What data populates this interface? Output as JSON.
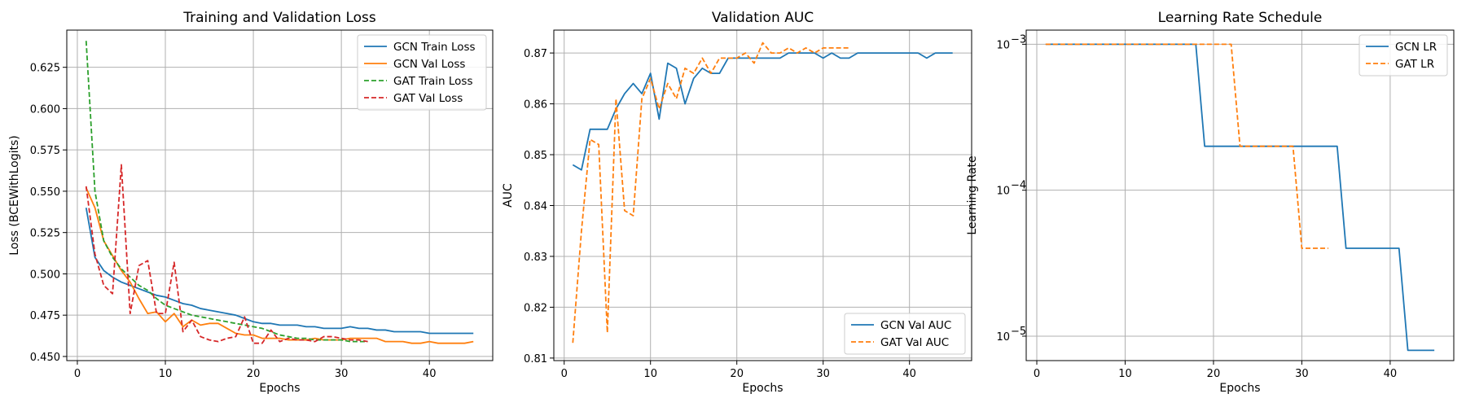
{
  "chart_data": [
    {
      "type": "line",
      "title": "Training and Validation Loss",
      "xlabel": "Epochs",
      "ylabel": "Loss (BCEWithLogits)",
      "xlim": [
        -1.2,
        47.2
      ],
      "ylim": [
        0.4475,
        0.6475
      ],
      "xticks": [
        0,
        10,
        20,
        30,
        40
      ],
      "yticks": [
        0.45,
        0.475,
        0.5,
        0.525,
        0.55,
        0.575,
        0.6,
        0.625
      ],
      "ytick_labels": [
        "0.450",
        "0.475",
        "0.500",
        "0.525",
        "0.550",
        "0.575",
        "0.600",
        "0.625"
      ],
      "grid": true,
      "legend_position": "top-right",
      "series": [
        {
          "name": "GCN Train Loss",
          "color": "#1f77b4",
          "dashed": false,
          "x": [
            1,
            2,
            3,
            4,
            5,
            6,
            7,
            8,
            9,
            10,
            11,
            12,
            13,
            14,
            15,
            16,
            17,
            18,
            19,
            20,
            21,
            22,
            23,
            24,
            25,
            26,
            27,
            28,
            29,
            30,
            31,
            32,
            33,
            34,
            35,
            36,
            37,
            38,
            39,
            40,
            41,
            42,
            43,
            44,
            45
          ],
          "y": [
            0.54,
            0.51,
            0.502,
            0.498,
            0.495,
            0.493,
            0.491,
            0.489,
            0.487,
            0.486,
            0.484,
            0.482,
            0.481,
            0.479,
            0.478,
            0.477,
            0.476,
            0.475,
            0.473,
            0.471,
            0.47,
            0.47,
            0.469,
            0.469,
            0.469,
            0.468,
            0.468,
            0.467,
            0.467,
            0.467,
            0.468,
            0.467,
            0.467,
            0.466,
            0.466,
            0.465,
            0.465,
            0.465,
            0.465,
            0.464,
            0.464,
            0.464,
            0.464,
            0.464,
            0.464
          ]
        },
        {
          "name": "GCN Val Loss",
          "color": "#ff7f0e",
          "dashed": false,
          "x": [
            1,
            2,
            3,
            4,
            5,
            6,
            7,
            8,
            9,
            10,
            11,
            12,
            13,
            14,
            15,
            16,
            17,
            18,
            19,
            20,
            21,
            22,
            23,
            24,
            25,
            26,
            27,
            28,
            29,
            30,
            31,
            32,
            33,
            34,
            35,
            36,
            37,
            38,
            39,
            40,
            41,
            42,
            43,
            44,
            45
          ],
          "y": [
            0.552,
            0.54,
            0.52,
            0.511,
            0.502,
            0.495,
            0.485,
            0.476,
            0.477,
            0.471,
            0.476,
            0.468,
            0.472,
            0.469,
            0.47,
            0.47,
            0.467,
            0.464,
            0.463,
            0.463,
            0.461,
            0.461,
            0.461,
            0.46,
            0.46,
            0.46,
            0.461,
            0.46,
            0.46,
            0.46,
            0.461,
            0.461,
            0.461,
            0.461,
            0.459,
            0.459,
            0.459,
            0.458,
            0.458,
            0.459,
            0.458,
            0.458,
            0.458,
            0.458,
            0.459
          ]
        },
        {
          "name": "GAT Train Loss",
          "color": "#2ca02c",
          "dashed": true,
          "x": [
            1,
            2,
            3,
            4,
            5,
            6,
            7,
            8,
            9,
            10,
            11,
            12,
            13,
            14,
            15,
            16,
            17,
            18,
            19,
            20,
            21,
            22,
            23,
            24,
            25,
            26,
            27,
            28,
            29,
            30,
            31,
            32,
            33
          ],
          "y": [
            0.641,
            0.55,
            0.52,
            0.51,
            0.503,
            0.498,
            0.493,
            0.49,
            0.485,
            0.481,
            0.479,
            0.477,
            0.475,
            0.474,
            0.473,
            0.472,
            0.471,
            0.47,
            0.469,
            0.468,
            0.467,
            0.465,
            0.463,
            0.462,
            0.461,
            0.461,
            0.46,
            0.46,
            0.46,
            0.46,
            0.459,
            0.459,
            0.459
          ]
        },
        {
          "name": "GAT Val Loss",
          "color": "#d62728",
          "dashed": true,
          "x": [
            1,
            2,
            3,
            4,
            5,
            6,
            7,
            8,
            9,
            10,
            11,
            12,
            13,
            14,
            15,
            16,
            17,
            18,
            19,
            20,
            21,
            22,
            23,
            24,
            25,
            26,
            27,
            28,
            29,
            30,
            31,
            32,
            33
          ],
          "y": [
            0.553,
            0.512,
            0.493,
            0.488,
            0.566,
            0.476,
            0.505,
            0.508,
            0.476,
            0.476,
            0.507,
            0.465,
            0.472,
            0.462,
            0.46,
            0.459,
            0.461,
            0.462,
            0.474,
            0.458,
            0.458,
            0.466,
            0.459,
            0.461,
            0.46,
            0.46,
            0.459,
            0.462,
            0.462,
            0.461,
            0.46,
            0.46,
            0.459
          ]
        }
      ]
    },
    {
      "type": "line",
      "title": "Validation AUC",
      "xlabel": "Epochs",
      "ylabel": "AUC",
      "xlim": [
        -1.2,
        47.2
      ],
      "ylim": [
        0.8095,
        0.8745
      ],
      "xticks": [
        0,
        10,
        20,
        30,
        40
      ],
      "yticks": [
        0.81,
        0.82,
        0.83,
        0.84,
        0.85,
        0.86,
        0.87
      ],
      "ytick_labels": [
        "0.81",
        "0.82",
        "0.83",
        "0.84",
        "0.85",
        "0.86",
        "0.87"
      ],
      "grid": true,
      "legend_position": "bottom-right",
      "series": [
        {
          "name": "GCN Val AUC",
          "color": "#1f77b4",
          "dashed": false,
          "x": [
            1,
            2,
            3,
            4,
            5,
            6,
            7,
            8,
            9,
            10,
            11,
            12,
            13,
            14,
            15,
            16,
            17,
            18,
            19,
            20,
            21,
            22,
            23,
            24,
            25,
            26,
            27,
            28,
            29,
            30,
            31,
            32,
            33,
            34,
            35,
            36,
            37,
            38,
            39,
            40,
            41,
            42,
            43,
            44,
            45
          ],
          "y": [
            0.848,
            0.847,
            0.855,
            0.855,
            0.855,
            0.859,
            0.862,
            0.864,
            0.862,
            0.866,
            0.857,
            0.868,
            0.867,
            0.86,
            0.865,
            0.867,
            0.866,
            0.866,
            0.869,
            0.869,
            0.869,
            0.869,
            0.869,
            0.869,
            0.869,
            0.87,
            0.87,
            0.87,
            0.87,
            0.869,
            0.87,
            0.869,
            0.869,
            0.87,
            0.87,
            0.87,
            0.87,
            0.87,
            0.87,
            0.87,
            0.87,
            0.869,
            0.87,
            0.87,
            0.87
          ]
        },
        {
          "name": "GAT Val AUC",
          "color": "#ff7f0e",
          "dashed": true,
          "x": [
            1,
            2,
            3,
            4,
            5,
            6,
            7,
            8,
            9,
            10,
            11,
            12,
            13,
            14,
            15,
            16,
            17,
            18,
            19,
            20,
            21,
            22,
            23,
            24,
            25,
            26,
            27,
            28,
            29,
            30,
            31,
            32,
            33
          ],
          "y": [
            0.813,
            0.835,
            0.853,
            0.852,
            0.815,
            0.861,
            0.839,
            0.838,
            0.861,
            0.865,
            0.859,
            0.864,
            0.861,
            0.867,
            0.866,
            0.869,
            0.866,
            0.869,
            0.869,
            0.869,
            0.87,
            0.868,
            0.872,
            0.87,
            0.87,
            0.871,
            0.87,
            0.871,
            0.87,
            0.871,
            0.871,
            0.871,
            0.871
          ]
        }
      ]
    },
    {
      "type": "line",
      "title": "Learning Rate Schedule",
      "xlabel": "Epochs",
      "ylabel": "Learning Rate",
      "xlim": [
        -1.2,
        47.2
      ],
      "yscale": "log",
      "ylim": [
        6.8e-06,
        0.00125
      ],
      "xticks": [
        0,
        10,
        20,
        30,
        40
      ],
      "yticks": [
        1e-05,
        0.0001,
        0.001
      ],
      "ytick_base": "10",
      "ytick_exponents": [
        "−5",
        "−4",
        "−3"
      ],
      "grid": true,
      "legend_position": "top-right",
      "series": [
        {
          "name": "GCN LR",
          "color": "#1f77b4",
          "dashed": false,
          "x": [
            1,
            2,
            3,
            4,
            5,
            6,
            7,
            8,
            9,
            10,
            11,
            12,
            13,
            14,
            15,
            16,
            17,
            18,
            19,
            20,
            21,
            22,
            23,
            24,
            25,
            26,
            27,
            28,
            29,
            30,
            31,
            32,
            33,
            34,
            35,
            36,
            37,
            38,
            39,
            40,
            41,
            42,
            43,
            44,
            45
          ],
          "y": [
            0.001,
            0.001,
            0.001,
            0.001,
            0.001,
            0.001,
            0.001,
            0.001,
            0.001,
            0.001,
            0.001,
            0.001,
            0.001,
            0.001,
            0.001,
            0.001,
            0.001,
            0.001,
            0.0002,
            0.0002,
            0.0002,
            0.0002,
            0.0002,
            0.0002,
            0.0002,
            0.0002,
            0.0002,
            0.0002,
            0.0002,
            0.0002,
            0.0002,
            0.0002,
            0.0002,
            0.0002,
            4e-05,
            4e-05,
            4e-05,
            4e-05,
            4e-05,
            4e-05,
            4e-05,
            8e-06,
            8e-06,
            8e-06,
            8e-06
          ]
        },
        {
          "name": "GAT LR",
          "color": "#ff7f0e",
          "dashed": true,
          "x": [
            1,
            2,
            3,
            4,
            5,
            6,
            7,
            8,
            9,
            10,
            11,
            12,
            13,
            14,
            15,
            16,
            17,
            18,
            19,
            20,
            21,
            22,
            23,
            24,
            25,
            26,
            27,
            28,
            29,
            30,
            31,
            32,
            33
          ],
          "y": [
            0.001,
            0.001,
            0.001,
            0.001,
            0.001,
            0.001,
            0.001,
            0.001,
            0.001,
            0.001,
            0.001,
            0.001,
            0.001,
            0.001,
            0.001,
            0.001,
            0.001,
            0.001,
            0.001,
            0.001,
            0.001,
            0.001,
            0.0002,
            0.0002,
            0.0002,
            0.0002,
            0.0002,
            0.0002,
            0.0002,
            4e-05,
            4e-05,
            4e-05,
            4e-05
          ]
        }
      ]
    }
  ]
}
